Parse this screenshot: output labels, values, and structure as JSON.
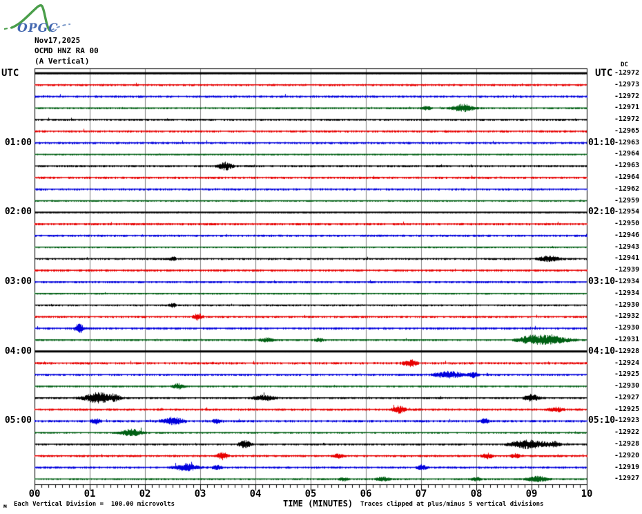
{
  "logo": {
    "text": "OPGC"
  },
  "header": {
    "date": "Nov17,2025",
    "station": "OCMD HNZ RA 00",
    "component": "(A Vertical)"
  },
  "plot": {
    "left_axis_header": "UTC",
    "right_axis_header": "UTC",
    "dc_header": "DC"
  },
  "footer": {
    "micro_mark": "м",
    "scale_note": "Each Vertical Division =  100.00 microvolts",
    "clip_note": "Traces clipped at plus/minus 5 vertical divisions"
  },
  "colors": {
    "black": "#000000",
    "red": "#e80000",
    "blue": "#0000dd",
    "green": "#006014",
    "grid": "#808080",
    "frame": "#000000",
    "logo_green": "#4a9e4a",
    "logo_blue": "#4468b0"
  },
  "chart_data": {
    "type": "line",
    "title": "OCMD HNZ RA 00 (A Vertical) Nov17,2025 helicorder",
    "xlabel": "TIME (MINUTES)",
    "x_range": [
      0,
      10
    ],
    "x_ticks": [
      "00",
      "01",
      "02",
      "03",
      "04",
      "05",
      "06",
      "07",
      "08",
      "09",
      "10"
    ],
    "row_duration_minutes": 10,
    "left_axis_labels": [
      "01:00",
      "02:00",
      "03:00",
      "04:00",
      "05:00"
    ],
    "right_axis_labels": [
      "01:10",
      "02:10",
      "03:10",
      "04:10",
      "05:10"
    ],
    "rows": [
      {
        "start_utc": "00:00",
        "color": "black",
        "dc": -12972,
        "left_label": "",
        "right_label": "",
        "noise": 0.35,
        "thick": 3,
        "events": []
      },
      {
        "start_utc": "00:10",
        "color": "red",
        "dc": -12973,
        "left_label": "",
        "right_label": "",
        "noise": 1.2,
        "thick": 0,
        "events": []
      },
      {
        "start_utc": "00:20",
        "color": "blue",
        "dc": -12972,
        "left_label": "",
        "right_label": "",
        "noise": 1.2,
        "thick": 0,
        "events": []
      },
      {
        "start_utc": "00:30",
        "color": "green",
        "dc": -12971,
        "left_label": "",
        "right_label": "",
        "noise": 0.8,
        "thick": 0,
        "events": [
          {
            "t": 7.75,
            "a": 5,
            "w": 0.18
          },
          {
            "t": 7.1,
            "a": 2.5,
            "w": 0.08
          }
        ]
      },
      {
        "start_utc": "00:40",
        "color": "black",
        "dc": -12972,
        "left_label": "",
        "right_label": "",
        "noise": 1.0,
        "thick": 0,
        "events": []
      },
      {
        "start_utc": "00:50",
        "color": "red",
        "dc": -12965,
        "left_label": "",
        "right_label": "",
        "noise": 1.2,
        "thick": 0,
        "events": []
      },
      {
        "start_utc": "01:00",
        "color": "blue",
        "dc": -12963,
        "left_label": "01:00",
        "right_label": "01:10",
        "noise": 1.2,
        "thick": 0,
        "events": []
      },
      {
        "start_utc": "01:10",
        "color": "green",
        "dc": -12964,
        "left_label": "",
        "right_label": "",
        "noise": 0.7,
        "thick": 0,
        "events": []
      },
      {
        "start_utc": "01:20",
        "color": "black",
        "dc": -12963,
        "left_label": "",
        "right_label": "",
        "noise": 1.0,
        "thick": 0,
        "events": [
          {
            "t": 3.45,
            "a": 5.5,
            "w": 0.12
          }
        ]
      },
      {
        "start_utc": "01:30",
        "color": "red",
        "dc": -12964,
        "left_label": "",
        "right_label": "",
        "noise": 1.2,
        "thick": 0,
        "events": []
      },
      {
        "start_utc": "01:40",
        "color": "blue",
        "dc": -12962,
        "left_label": "",
        "right_label": "",
        "noise": 1.2,
        "thick": 0,
        "events": []
      },
      {
        "start_utc": "01:50",
        "color": "green",
        "dc": -12959,
        "left_label": "",
        "right_label": "",
        "noise": 0.7,
        "thick": 0,
        "events": []
      },
      {
        "start_utc": "02:00",
        "color": "black",
        "dc": -12954,
        "left_label": "02:00",
        "right_label": "02:10",
        "noise": 0.6,
        "thick": 2,
        "events": []
      },
      {
        "start_utc": "02:10",
        "color": "red",
        "dc": -12950,
        "left_label": "",
        "right_label": "",
        "noise": 1.2,
        "thick": 0,
        "events": []
      },
      {
        "start_utc": "02:20",
        "color": "blue",
        "dc": -12946,
        "left_label": "",
        "right_label": "",
        "noise": 1.1,
        "thick": 0,
        "events": []
      },
      {
        "start_utc": "02:30",
        "color": "green",
        "dc": -12943,
        "left_label": "",
        "right_label": "",
        "noise": 0.7,
        "thick": 0,
        "events": []
      },
      {
        "start_utc": "02:40",
        "color": "black",
        "dc": -12941,
        "left_label": "",
        "right_label": "",
        "noise": 1.0,
        "thick": 0,
        "events": [
          {
            "t": 2.5,
            "a": 2.5,
            "w": 0.06
          },
          {
            "t": 9.3,
            "a": 3.5,
            "w": 0.18
          }
        ]
      },
      {
        "start_utc": "02:50",
        "color": "red",
        "dc": -12939,
        "left_label": "",
        "right_label": "",
        "noise": 1.2,
        "thick": 0,
        "events": []
      },
      {
        "start_utc": "03:00",
        "color": "blue",
        "dc": -12934,
        "left_label": "03:00",
        "right_label": "03:10",
        "noise": 1.1,
        "thick": 0,
        "events": []
      },
      {
        "start_utc": "03:10",
        "color": "green",
        "dc": -12934,
        "left_label": "",
        "right_label": "",
        "noise": 0.7,
        "thick": 0,
        "events": []
      },
      {
        "start_utc": "03:20",
        "color": "black",
        "dc": -12930,
        "left_label": "",
        "right_label": "",
        "noise": 0.9,
        "thick": 0,
        "events": [
          {
            "t": 2.5,
            "a": 2.5,
            "w": 0.06
          }
        ]
      },
      {
        "start_utc": "03:30",
        "color": "red",
        "dc": -12932,
        "left_label": "",
        "right_label": "",
        "noise": 1.1,
        "thick": 0,
        "events": [
          {
            "t": 2.95,
            "a": 4,
            "w": 0.08
          }
        ]
      },
      {
        "start_utc": "03:40",
        "color": "blue",
        "dc": -12930,
        "left_label": "",
        "right_label": "",
        "noise": 1.2,
        "thick": 0,
        "events": [
          {
            "t": 0.8,
            "a": 8,
            "w": 0.07
          }
        ]
      },
      {
        "start_utc": "03:50",
        "color": "green",
        "dc": -12931,
        "left_label": "",
        "right_label": "",
        "noise": 0.9,
        "thick": 0,
        "events": [
          {
            "t": 4.2,
            "a": 2.5,
            "w": 0.12
          },
          {
            "t": 5.15,
            "a": 2,
            "w": 0.08
          },
          {
            "t": 8.95,
            "a": 3.5,
            "w": 0.2
          },
          {
            "t": 9.3,
            "a": 5.5,
            "w": 0.35
          }
        ]
      },
      {
        "start_utc": "04:00",
        "color": "black",
        "dc": -12928,
        "left_label": "04:00",
        "right_label": "04:10",
        "noise": 0.35,
        "thick": 3,
        "events": []
      },
      {
        "start_utc": "04:10",
        "color": "red",
        "dc": -12924,
        "left_label": "",
        "right_label": "",
        "noise": 1.2,
        "thick": 0,
        "events": [
          {
            "t": 6.8,
            "a": 4.5,
            "w": 0.12
          }
        ]
      },
      {
        "start_utc": "04:20",
        "color": "blue",
        "dc": -12925,
        "left_label": "",
        "right_label": "",
        "noise": 1.1,
        "thick": 0,
        "events": [
          {
            "t": 7.5,
            "a": 4,
            "w": 0.25
          },
          {
            "t": 7.95,
            "a": 3.5,
            "w": 0.08
          }
        ]
      },
      {
        "start_utc": "04:30",
        "color": "green",
        "dc": -12930,
        "left_label": "",
        "right_label": "",
        "noise": 0.8,
        "thick": 0,
        "events": [
          {
            "t": 2.6,
            "a": 3.5,
            "w": 0.1
          }
        ]
      },
      {
        "start_utc": "04:40",
        "color": "black",
        "dc": -12927,
        "left_label": "",
        "right_label": "",
        "noise": 1.0,
        "thick": 0,
        "events": [
          {
            "t": 1.15,
            "a": 7,
            "w": 0.25
          },
          {
            "t": 1.45,
            "a": 3,
            "w": 0.1
          },
          {
            "t": 4.15,
            "a": 3.5,
            "w": 0.18
          },
          {
            "t": 9.0,
            "a": 4.5,
            "w": 0.12
          }
        ]
      },
      {
        "start_utc": "04:50",
        "color": "red",
        "dc": -12925,
        "left_label": "",
        "right_label": "",
        "noise": 1.2,
        "thick": 0,
        "events": [
          {
            "t": 6.6,
            "a": 4.5,
            "w": 0.1
          },
          {
            "t": 9.45,
            "a": 3,
            "w": 0.12
          }
        ]
      },
      {
        "start_utc": "05:00",
        "color": "blue",
        "dc": -12923,
        "left_label": "05:00",
        "right_label": "05:10",
        "noise": 1.2,
        "thick": 0,
        "events": [
          {
            "t": 1.1,
            "a": 3.5,
            "w": 0.08
          },
          {
            "t": 2.5,
            "a": 4.5,
            "w": 0.18
          },
          {
            "t": 3.3,
            "a": 2.5,
            "w": 0.08
          },
          {
            "t": 8.15,
            "a": 3.5,
            "w": 0.06
          }
        ]
      },
      {
        "start_utc": "05:10",
        "color": "green",
        "dc": -12922,
        "left_label": "",
        "right_label": "",
        "noise": 0.8,
        "thick": 0,
        "events": [
          {
            "t": 1.75,
            "a": 4.5,
            "w": 0.18
          }
        ]
      },
      {
        "start_utc": "05:20",
        "color": "black",
        "dc": -12928,
        "left_label": "",
        "right_label": "",
        "noise": 1.0,
        "thick": 0,
        "events": [
          {
            "t": 3.8,
            "a": 5,
            "w": 0.1
          },
          {
            "t": 8.95,
            "a": 6,
            "w": 0.3
          },
          {
            "t": 9.4,
            "a": 3,
            "w": 0.1
          }
        ]
      },
      {
        "start_utc": "05:30",
        "color": "red",
        "dc": -12920,
        "left_label": "",
        "right_label": "",
        "noise": 1.2,
        "thick": 0,
        "events": [
          {
            "t": 3.4,
            "a": 5,
            "w": 0.08
          },
          {
            "t": 5.5,
            "a": 2.5,
            "w": 0.08
          },
          {
            "t": 8.2,
            "a": 3.5,
            "w": 0.08
          },
          {
            "t": 8.7,
            "a": 2.5,
            "w": 0.08
          }
        ]
      },
      {
        "start_utc": "05:40",
        "color": "blue",
        "dc": -12919,
        "left_label": "",
        "right_label": "",
        "noise": 1.1,
        "thick": 0,
        "events": [
          {
            "t": 2.75,
            "a": 4.5,
            "w": 0.2
          },
          {
            "t": 3.3,
            "a": 2.5,
            "w": 0.08
          },
          {
            "t": 7.0,
            "a": 3.5,
            "w": 0.08
          }
        ]
      },
      {
        "start_utc": "05:50",
        "color": "green",
        "dc": -12927,
        "left_label": "",
        "right_label": "",
        "noise": 0.8,
        "thick": 0,
        "events": [
          {
            "t": 5.6,
            "a": 2,
            "w": 0.08
          },
          {
            "t": 6.3,
            "a": 2.5,
            "w": 0.12
          },
          {
            "t": 8.0,
            "a": 2.5,
            "w": 0.08
          },
          {
            "t": 9.1,
            "a": 3.5,
            "w": 0.18
          }
        ]
      }
    ]
  }
}
